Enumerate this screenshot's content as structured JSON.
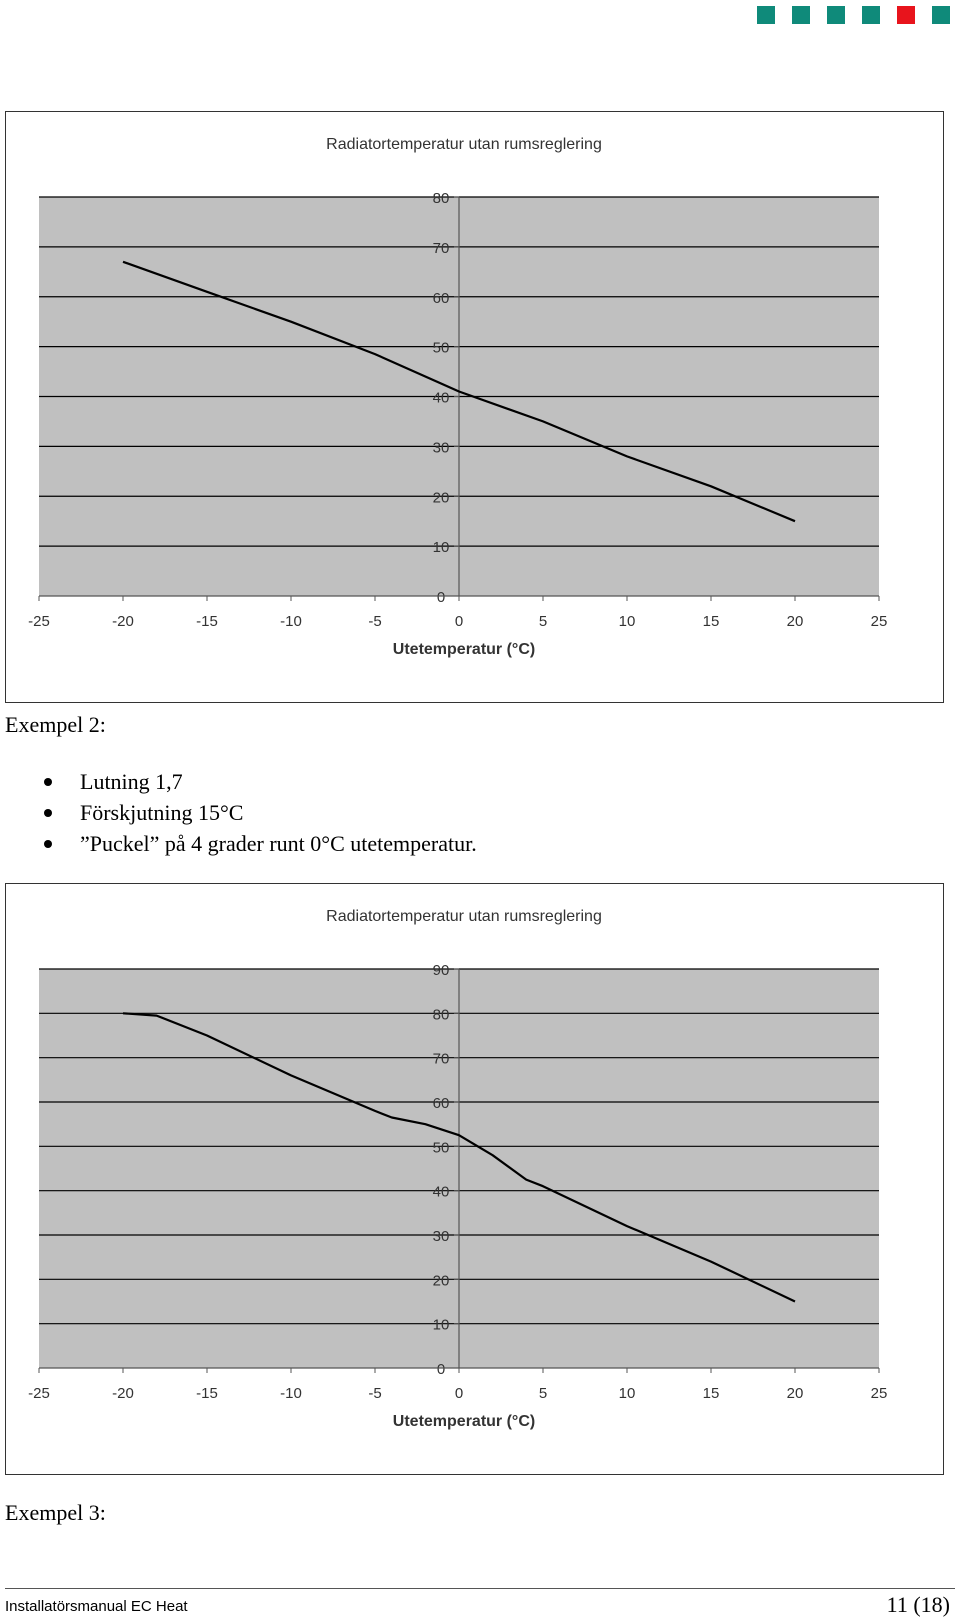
{
  "header": {
    "squares": [
      {
        "icon": "teal-square-icon",
        "color": "#0f8a7a"
      },
      {
        "icon": "teal-square-icon",
        "color": "#0f8a7a"
      },
      {
        "icon": "teal-square-icon",
        "color": "#0f8a7a"
      },
      {
        "icon": "teal-square-icon",
        "color": "#0f8a7a"
      },
      {
        "icon": "red-square-icon",
        "color": "#e8141c"
      },
      {
        "icon": "teal-square-icon",
        "color": "#0f8a7a"
      }
    ]
  },
  "chart_data": [
    {
      "type": "line",
      "title": "Radiatortemperatur utan rumsreglering",
      "xlabel": "Utetemperatur  (°C)",
      "ylabel": "",
      "xlim": [
        -25,
        25
      ],
      "ylim": [
        0,
        80
      ],
      "xticks": [
        -25,
        -20,
        -15,
        -10,
        -5,
        0,
        5,
        10,
        15,
        20,
        25
      ],
      "yticks": [
        0,
        10,
        20,
        30,
        40,
        50,
        60,
        70,
        80
      ],
      "grid": true,
      "series": [
        {
          "x": [
            -20,
            -15,
            -10,
            -5,
            0,
            5,
            10,
            15,
            20
          ],
          "y": [
            67,
            61,
            55,
            48.5,
            41,
            35,
            28,
            22,
            15
          ]
        }
      ]
    },
    {
      "type": "line",
      "title": "Radiatortemperatur utan rumsreglering",
      "xlabel": "Utetemperatur  (°C)",
      "ylabel": "",
      "xlim": [
        -25,
        25
      ],
      "ylim": [
        0,
        90
      ],
      "xticks": [
        -25,
        -20,
        -15,
        -10,
        -5,
        0,
        5,
        10,
        15,
        20,
        25
      ],
      "yticks": [
        0,
        10,
        20,
        30,
        40,
        50,
        60,
        70,
        80,
        90
      ],
      "grid": true,
      "series": [
        {
          "x": [
            -20,
            -18,
            -15,
            -10,
            -5,
            -4,
            -2,
            0,
            2,
            4,
            5,
            10,
            15,
            20
          ],
          "y": [
            80,
            79.5,
            75,
            66,
            58,
            56.5,
            55,
            52.5,
            48,
            42.5,
            41,
            32,
            24,
            15
          ]
        }
      ]
    }
  ],
  "example2": {
    "heading": "Exempel 2:",
    "bullets": [
      "Lutning 1,7",
      "Förskjutning 15°C",
      "”Puckel” på 4 grader runt 0°C utetemperatur."
    ]
  },
  "example3": {
    "heading": "Exempel 3:"
  },
  "footer": {
    "left": "Installatörsmanual EC Heat",
    "right": "11 (18)"
  }
}
